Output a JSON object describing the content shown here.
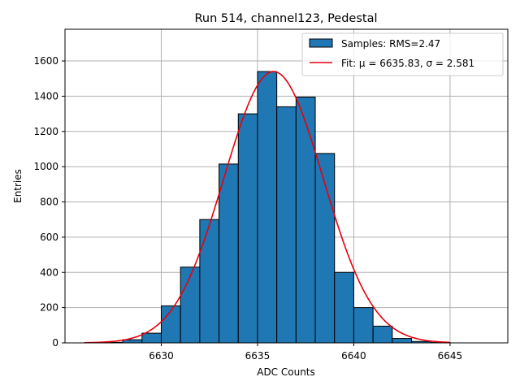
{
  "chart_data": {
    "type": "bar",
    "title": "Run 514, channel123, Pedestal",
    "xlabel": "ADC Counts",
    "ylabel": "Entries",
    "xlim": [
      6625,
      6648
    ],
    "ylim": [
      0,
      1780
    ],
    "xticks": [
      6630,
      6635,
      6640,
      6645
    ],
    "yticks": [
      0,
      200,
      400,
      600,
      800,
      1000,
      1200,
      1400,
      1600
    ],
    "grid": true,
    "legend_position": "top-right",
    "bin_width": 1,
    "bins": [
      {
        "x": 6627,
        "value": 3
      },
      {
        "x": 6628,
        "value": 18
      },
      {
        "x": 6629,
        "value": 55
      },
      {
        "x": 6630,
        "value": 210
      },
      {
        "x": 6631,
        "value": 430
      },
      {
        "x": 6632,
        "value": 700
      },
      {
        "x": 6633,
        "value": 1015
      },
      {
        "x": 6634,
        "value": 1300
      },
      {
        "x": 6635,
        "value": 1540
      },
      {
        "x": 6636,
        "value": 1340
      },
      {
        "x": 6637,
        "value": 1395
      },
      {
        "x": 6638,
        "value": 1075
      },
      {
        "x": 6639,
        "value": 400
      },
      {
        "x": 6640,
        "value": 200
      },
      {
        "x": 6641,
        "value": 95
      },
      {
        "x": 6642,
        "value": 25
      },
      {
        "x": 6643,
        "value": 8
      },
      {
        "x": 6644,
        "value": 2
      }
    ],
    "fit": {
      "mu": 6635.83,
      "sigma": 2.581,
      "amplitude": 1540,
      "x_range": [
        6626,
        6645
      ]
    },
    "colors": {
      "bars": "#1f77b4",
      "bar_edge": "#000000",
      "fit_line": "#e8000b",
      "grid": "#b0b0b0"
    },
    "legend": [
      {
        "label": "Samples: RMS=2.47",
        "kind": "patch"
      },
      {
        "label": "Fit: μ = 6635.83, σ = 2.581",
        "kind": "line"
      }
    ]
  }
}
